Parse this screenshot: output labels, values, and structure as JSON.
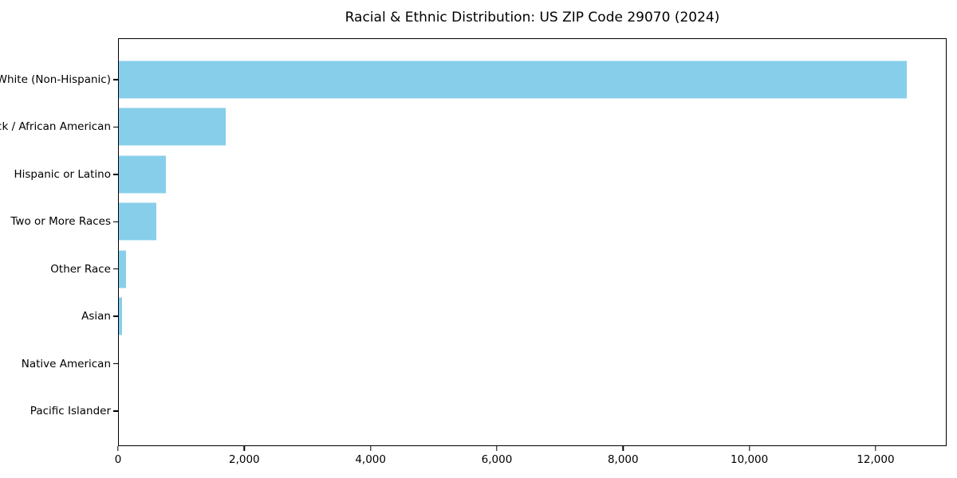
{
  "chart_data": {
    "type": "bar",
    "orientation": "horizontal",
    "title": "Racial & Ethnic Distribution: US ZIP Code 29070 (2024)",
    "categories": [
      "White (Non-Hispanic)",
      "Black / African American",
      "Hispanic or Latino",
      "Two or More Races",
      "Other Race",
      "Asian",
      "Native American",
      "Pacific Islander"
    ],
    "values": [
      12500,
      1700,
      750,
      600,
      120,
      45,
      0,
      0
    ],
    "title_text_color": "#000000",
    "bar_color": "#87CEEB",
    "axis_color": "#000000",
    "background_color": "#ffffff",
    "xlabel": "",
    "ylabel": "",
    "xlim": [
      0,
      13125
    ],
    "x_ticks": [
      0,
      2000,
      4000,
      6000,
      8000,
      10000,
      12000
    ],
    "x_tick_labels": [
      "0",
      "2,000",
      "4,000",
      "6,000",
      "8,000",
      "10,000",
      "12,000"
    ],
    "grid": false,
    "legend": null
  }
}
